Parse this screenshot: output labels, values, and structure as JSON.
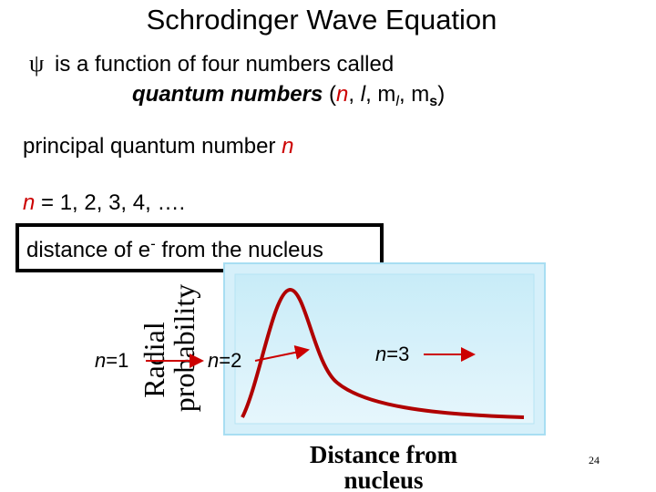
{
  "title": "Schrodinger Wave Equation",
  "line1": {
    "symbol": "ψ",
    "text": "is a function of four numbers called"
  },
  "line2": {
    "bold": "quantum numbers",
    "open": " (",
    "n": "n",
    "sep1": ", ",
    "l": "l",
    "sep2": ", m",
    "l_sub": "l",
    "sep3": ", m",
    "s_sub": "s",
    "close": ")"
  },
  "line3": {
    "text": "principal quantum number ",
    "n": "n"
  },
  "line4": {
    "n": "n",
    "text": " = 1, 2, 3, 4, …."
  },
  "box": {
    "text": "distance of e",
    "sup": "-",
    "rest": " from the nucleus"
  },
  "figure": {
    "y_label_1": "Radial",
    "y_label_2": "probability",
    "x_label_1": "Distance from",
    "x_label_2": "nucleus",
    "n1": {
      "n": "n",
      "eq": "=1"
    },
    "n2": {
      "n": "n",
      "eq": "=2"
    },
    "n3": {
      "n": "n",
      "eq": "=3"
    }
  },
  "page_number": "24"
}
